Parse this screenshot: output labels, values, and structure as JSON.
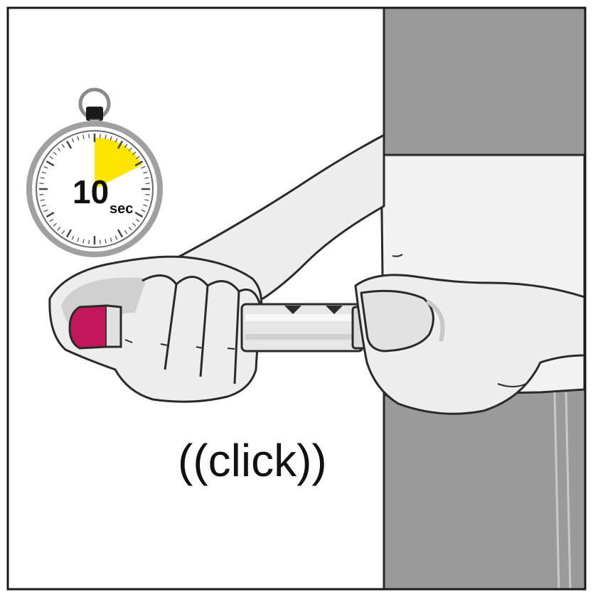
{
  "timer": {
    "number": "10",
    "unit": "sec"
  },
  "sound_label": "((click))",
  "colors": {
    "frame": "#1a1a1a",
    "body_gray": "#9a9a9a",
    "shirt": "#f2f2f2",
    "skin": "#ededed",
    "skin_shadow": "#c8c8c8",
    "pen_body": "#e6e6e6",
    "pen_cap_magenta": "#c2185b",
    "timer_highlight": "#ffe600"
  }
}
